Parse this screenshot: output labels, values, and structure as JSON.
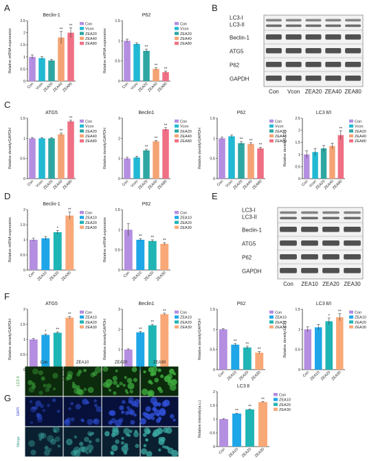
{
  "panel_letters": [
    "A",
    "B",
    "C",
    "D",
    "E",
    "F",
    "G"
  ],
  "colors": {
    "Con": "#b48ee0",
    "Vcon": "#21b9d3",
    "ZEA20_A": "#2ea7a2",
    "ZEA40": "#f5a374",
    "ZEA80": "#ef7085",
    "ZEA10": "#1fa6e8",
    "ZEA20_D": "#20b5b5",
    "ZEA30": "#f9a978"
  },
  "blots_b": {
    "labels": [
      "LC3-I",
      "LC3-II",
      "Beclin-1",
      "ATG5",
      "P62",
      "GAPDH"
    ],
    "lanes": [
      "Con",
      "Vcon",
      "ZEA20",
      "ZEA40",
      "ZEA80"
    ]
  },
  "blots_e": {
    "labels": [
      "LC3-I",
      "LC3-II",
      "Beclin-1",
      "ATG5",
      "P62",
      "GAPDH"
    ],
    "lanes": [
      "Con",
      "ZEA10",
      "ZEA20",
      "ZEA30"
    ]
  },
  "micrograph_g": {
    "columns": [
      "Con",
      "ZEA10",
      "ZEA20",
      "ZEA30"
    ],
    "rows": [
      "LC3 II",
      "DAPI",
      "Merge"
    ]
  },
  "chart_data": [
    {
      "id": "A1",
      "type": "bar",
      "title": "Beclin-1",
      "ylabel": "Relative mRNA expression",
      "categories": [
        "Con",
        "Vcon",
        "ZEA20",
        "ZEA40",
        "ZEA80"
      ],
      "values": [
        1.0,
        0.95,
        0.85,
        1.8,
        2.0
      ],
      "errors": [
        0.08,
        0.06,
        0.05,
        0.25,
        0.2
      ],
      "sig": [
        "",
        "",
        "",
        "**",
        "**"
      ],
      "ylim": [
        0,
        2.5
      ],
      "ticks": [
        0.0,
        0.5,
        1.0,
        1.5,
        2.0,
        2.5
      ],
      "legend": [
        "Con",
        "Vcon",
        "ZEA20",
        "ZEA40",
        "ZEA80"
      ]
    },
    {
      "id": "A2",
      "type": "bar",
      "title": "P62",
      "ylabel": "Relative mRNA expression",
      "categories": [
        "Con",
        "Vcon",
        "ZEA20",
        "ZEA40",
        "ZEA80"
      ],
      "values": [
        1.0,
        0.92,
        0.75,
        0.3,
        0.22
      ],
      "errors": [
        0.04,
        0.03,
        0.04,
        0.03,
        0.03
      ],
      "sig": [
        "",
        "",
        "**",
        "**",
        "**"
      ],
      "ylim": [
        0,
        1.5
      ],
      "ticks": [
        0.0,
        0.5,
        1.0,
        1.5
      ],
      "legend": [
        "Con",
        "Vcon",
        "ZEA20",
        "ZEA40",
        "ZEA80"
      ]
    },
    {
      "id": "C1",
      "type": "bar",
      "title": "ATG5",
      "ylabel": "Relative density/GAPDH",
      "categories": [
        "Con",
        "Vcon",
        "ZEA20",
        "ZEA40",
        "ZEA80"
      ],
      "values": [
        1.0,
        1.0,
        1.0,
        1.1,
        1.42
      ],
      "errors": [
        0.02,
        0.02,
        0.02,
        0.03,
        0.03
      ],
      "sig": [
        "",
        "",
        "",
        "**",
        "**"
      ],
      "ylim": [
        0,
        1.5
      ],
      "ticks": [
        0.0,
        0.5,
        1.0,
        1.5
      ],
      "legend": [
        "Con",
        "Vcon",
        "ZEA20",
        "ZEA40",
        "ZEA80"
      ]
    },
    {
      "id": "C2",
      "type": "bar",
      "title": "Beclin1",
      "ylabel": "Relative density/GAPDH",
      "categories": [
        "Con",
        "Vcon",
        "ZEA20",
        "ZEA40",
        "ZEA80"
      ],
      "values": [
        1.0,
        1.05,
        1.4,
        1.85,
        2.45
      ],
      "errors": [
        0.06,
        0.06,
        0.06,
        0.05,
        0.08
      ],
      "sig": [
        "",
        "",
        "**",
        "**",
        "**"
      ],
      "ylim": [
        0,
        3
      ],
      "ticks": [
        0,
        1,
        2,
        3
      ],
      "legend": [
        "Con",
        "Vcon",
        "ZEA20",
        "ZEA40",
        "ZEA80"
      ]
    },
    {
      "id": "C3",
      "type": "bar",
      "title": "P62",
      "ylabel": "Relative density/GAPDH",
      "categories": [
        "Con",
        "Vcon",
        "ZEA20",
        "ZEA40",
        "ZEA80"
      ],
      "values": [
        1.0,
        1.05,
        0.88,
        0.86,
        0.75
      ],
      "errors": [
        0.03,
        0.03,
        0.04,
        0.03,
        0.03
      ],
      "sig": [
        "",
        "",
        "**",
        "**",
        "**"
      ],
      "ylim": [
        0,
        1.5
      ],
      "ticks": [
        0.0,
        0.5,
        1.0,
        1.5
      ],
      "legend": [
        "Con",
        "Vcon",
        "ZEA20",
        "ZEA40",
        "ZEA80"
      ]
    },
    {
      "id": "C4",
      "type": "bar",
      "title": "LC3 Ⅱ/Ⅰ",
      "ylabel": "Relative density/LC3 Ⅰ",
      "categories": [
        "Con",
        "Vcon",
        "ZEA20",
        "ZEA40",
        "ZEA80"
      ],
      "values": [
        1.0,
        1.1,
        1.25,
        1.35,
        1.8
      ],
      "errors": [
        0.15,
        0.15,
        0.12,
        0.12,
        0.18
      ],
      "sig": [
        "",
        "",
        "",
        "",
        "**"
      ],
      "ylim": [
        0,
        2.5
      ],
      "ticks": [
        0.0,
        0.5,
        1.0,
        1.5,
        2.0,
        2.5
      ],
      "legend": [
        "Con",
        "Vcon",
        "ZEA20",
        "ZEA40",
        "ZEA80"
      ]
    },
    {
      "id": "D1",
      "type": "bar",
      "title": "Beclin-1",
      "ylabel": "Relative mRNA expression",
      "categories": [
        "Con",
        "ZEA10",
        "ZEA20",
        "ZEA30"
      ],
      "values": [
        1.0,
        1.05,
        1.25,
        1.8
      ],
      "errors": [
        0.05,
        0.06,
        0.06,
        0.12
      ],
      "sig": [
        "",
        "",
        "*",
        "**"
      ],
      "ylim": [
        0,
        2.0
      ],
      "ticks": [
        0.0,
        0.5,
        1.0,
        1.5,
        2.0
      ],
      "legend": [
        "Con",
        "ZEA10",
        "ZEA20",
        "ZEA30"
      ]
    },
    {
      "id": "D2",
      "type": "bar",
      "title": "P62",
      "ylabel": "Relative mRNA expression",
      "categories": [
        "Con",
        "ZEA10",
        "ZEA20",
        "ZEA30"
      ],
      "values": [
        1.0,
        0.75,
        0.72,
        0.65
      ],
      "errors": [
        0.15,
        0.03,
        0.03,
        0.03
      ],
      "sig": [
        "",
        "**",
        "**",
        "**"
      ],
      "ylim": [
        0,
        1.5
      ],
      "ticks": [
        0.0,
        0.5,
        1.0,
        1.5
      ],
      "legend": [
        "Con",
        "ZEA10",
        "ZEA20",
        "ZEA30"
      ]
    },
    {
      "id": "F1",
      "type": "bar",
      "title": "ATG5",
      "ylabel": "Relative density/GAPDH",
      "categories": [
        "Con",
        "ZEA10",
        "ZEA20",
        "ZEA30"
      ],
      "values": [
        1.0,
        1.15,
        1.22,
        1.72
      ],
      "errors": [
        0.03,
        0.03,
        0.03,
        0.04
      ],
      "sig": [
        "",
        "*",
        "**",
        "**"
      ],
      "ylim": [
        0,
        2.0
      ],
      "ticks": [
        0.0,
        0.5,
        1.0,
        1.5,
        2.0
      ],
      "legend": [
        "Con",
        "ZEA10",
        "ZEA20",
        "ZEA30"
      ]
    },
    {
      "id": "F2",
      "type": "bar",
      "title": "Beclin1",
      "ylabel": "Relative density/GAPDH",
      "categories": [
        "Con",
        "ZEA10",
        "ZEA20",
        "ZEA30"
      ],
      "values": [
        1.0,
        1.85,
        2.2,
        2.75
      ],
      "errors": [
        0.03,
        0.05,
        0.05,
        0.05
      ],
      "sig": [
        "",
        "**",
        "**",
        "**"
      ],
      "ylim": [
        0,
        3
      ],
      "ticks": [
        0,
        1,
        2,
        3
      ],
      "legend": [
        "Con",
        "ZEA10",
        "ZEA20",
        "ZEA30"
      ]
    },
    {
      "id": "F3",
      "type": "bar",
      "title": "P62",
      "ylabel": "Relative density/GAPDH",
      "categories": [
        "Con",
        "ZEA10",
        "ZEA20",
        "ZEA30"
      ],
      "values": [
        1.0,
        0.62,
        0.55,
        0.42
      ],
      "errors": [
        0.02,
        0.03,
        0.03,
        0.03
      ],
      "sig": [
        "",
        "**",
        "**",
        "**"
      ],
      "ylim": [
        0,
        1.5
      ],
      "ticks": [
        0.0,
        0.5,
        1.0,
        1.5
      ],
      "legend": [
        "Con",
        "ZEA10",
        "ZEA20",
        "ZEA30"
      ]
    },
    {
      "id": "F4",
      "type": "bar",
      "title": "LC3 Ⅱ/Ⅰ",
      "ylabel": "Relative density/LC3 Ⅰ",
      "categories": [
        "Con",
        "ZEA10",
        "ZEA20",
        "ZEA30"
      ],
      "values": [
        1.0,
        1.05,
        1.2,
        1.3
      ],
      "errors": [
        0.06,
        0.07,
        0.08,
        0.09
      ],
      "sig": [
        "",
        "",
        "*",
        "**"
      ],
      "ylim": [
        0,
        1.5
      ],
      "ticks": [
        0.0,
        0.5,
        1.0,
        1.5
      ],
      "legend": [
        "Con",
        "ZEA10",
        "ZEA20",
        "ZEA30"
      ]
    },
    {
      "id": "G1",
      "type": "bar",
      "title": "LC3 Ⅱ",
      "ylabel": "Relative intensity(a.u.)",
      "categories": [
        "Con",
        "ZEA10",
        "ZEA20",
        "ZEA30"
      ],
      "values": [
        1.0,
        1.2,
        1.35,
        1.62
      ],
      "errors": [
        0.02,
        0.02,
        0.02,
        0.02
      ],
      "sig": [
        "",
        "**",
        "**",
        "**"
      ],
      "ylim": [
        0,
        2.0
      ],
      "ticks": [
        0.0,
        0.5,
        1.0,
        1.5,
        2.0
      ],
      "legend": [
        "Con",
        "ZEA10",
        "ZEA20",
        "ZEA30"
      ]
    }
  ]
}
